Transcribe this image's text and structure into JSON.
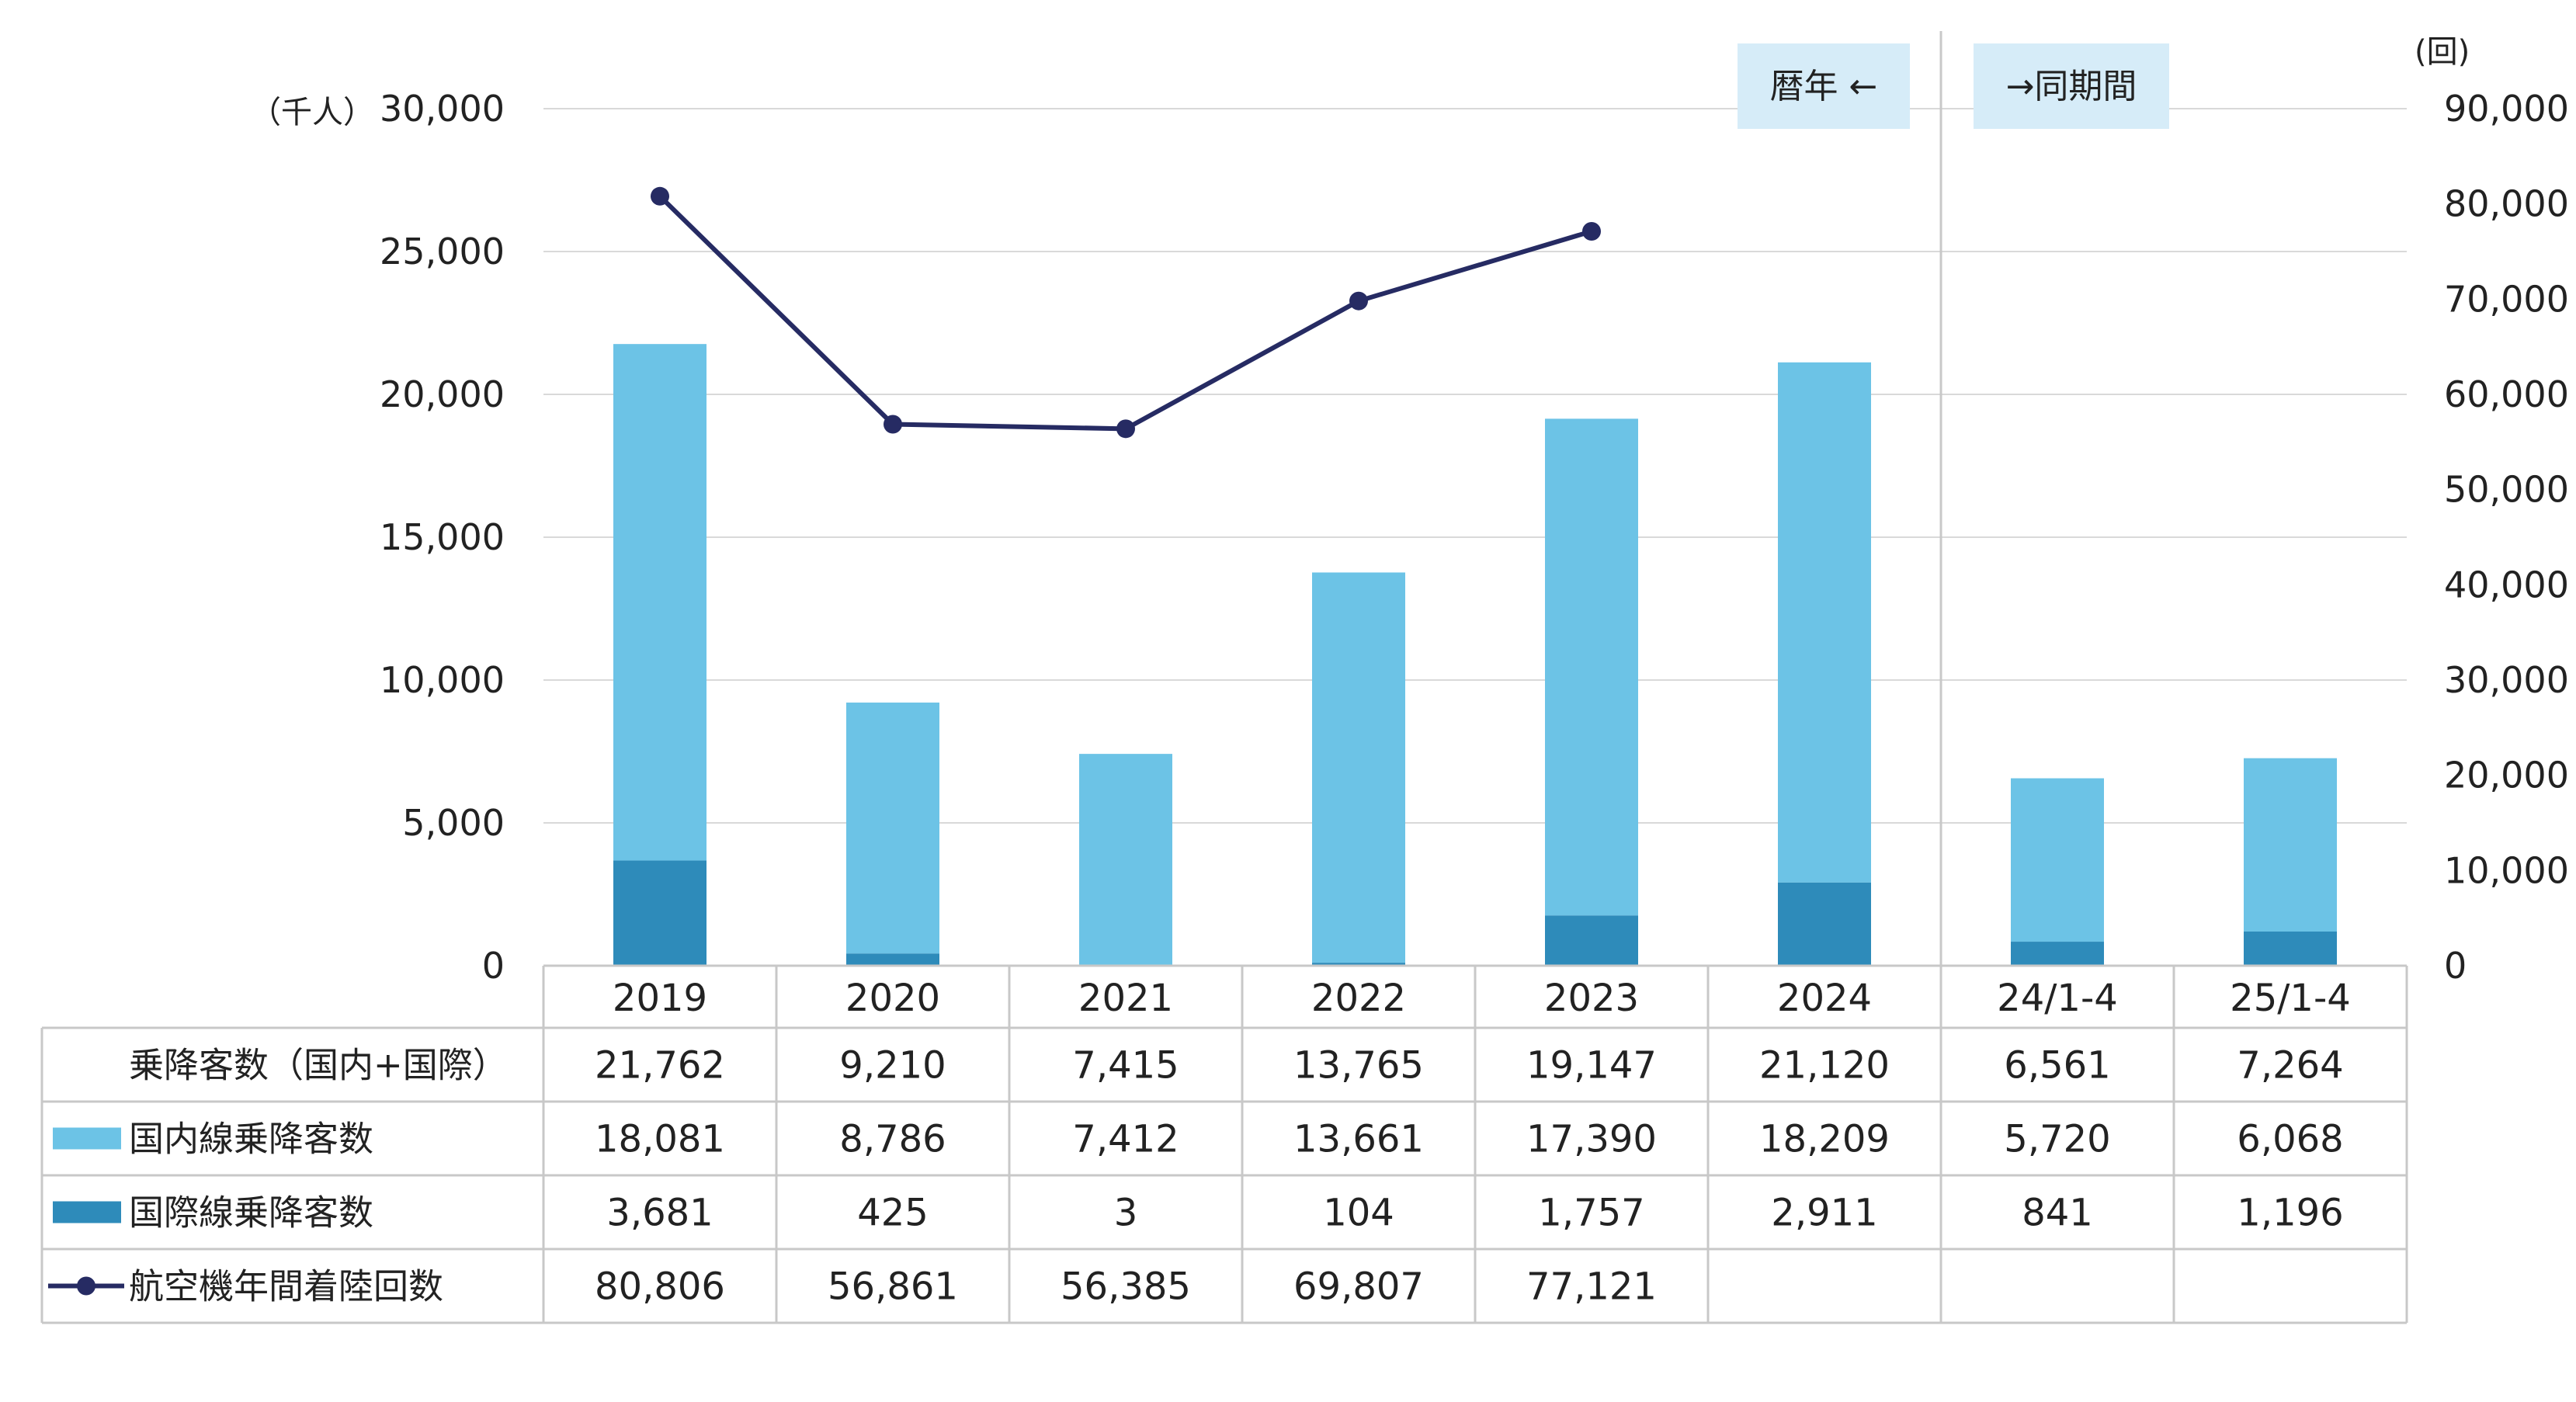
{
  "chart_data": {
    "type": "bar",
    "subtype": "stacked-bar-with-line",
    "categories": [
      "2019",
      "2020",
      "2021",
      "2022",
      "2023",
      "2024",
      "24/1-4",
      "25/1-4"
    ],
    "left_axis": {
      "unit": "（千人）",
      "range": [
        0,
        30000
      ],
      "ticks": [
        "0",
        "5,000",
        "10,000",
        "15,000",
        "20,000",
        "25,000",
        "30,000"
      ]
    },
    "right_axis": {
      "unit": "(回)",
      "range": [
        0,
        90000
      ],
      "ticks": [
        "0",
        "10,000",
        "20,000",
        "30,000",
        "40,000",
        "50,000",
        "60,000",
        "70,000",
        "80,000",
        "90,000"
      ]
    },
    "annotations": {
      "calendar_year": "暦年 ←",
      "same_period": "→同期間"
    },
    "total_label": "乗降客数（国内+国際）",
    "totals": [
      "21,762",
      "9,210",
      "7,415",
      "13,765",
      "19,147",
      "21,120",
      "6,561",
      "7,264"
    ],
    "series": [
      {
        "name": "国内線乗降客数",
        "type": "bar",
        "axis": "left",
        "color": "#6cc3e6",
        "values": [
          18081,
          8786,
          7412,
          13661,
          17390,
          18209,
          5720,
          6068
        ],
        "labels": [
          "18,081",
          "8,786",
          "7,412",
          "13,661",
          "17,390",
          "18,209",
          "5,720",
          "6,068"
        ]
      },
      {
        "name": "国際線乗降客数",
        "type": "bar",
        "axis": "left",
        "color": "#2e8bba",
        "values": [
          3681,
          425,
          3,
          104,
          1757,
          2911,
          841,
          1196
        ],
        "labels": [
          "3,681",
          "425",
          "3",
          "104",
          "1,757",
          "2,911",
          "841",
          "1,196"
        ]
      },
      {
        "name": "航空機年間着陸回数",
        "type": "line",
        "axis": "right",
        "color": "#262b63",
        "values": [
          80806,
          56861,
          56385,
          69807,
          77121,
          null,
          null,
          null
        ],
        "labels": [
          "80,806",
          "56,861",
          "56,385",
          "69,807",
          "77,121",
          "",
          "",
          ""
        ]
      }
    ],
    "grid": true,
    "legend": "table-below"
  }
}
